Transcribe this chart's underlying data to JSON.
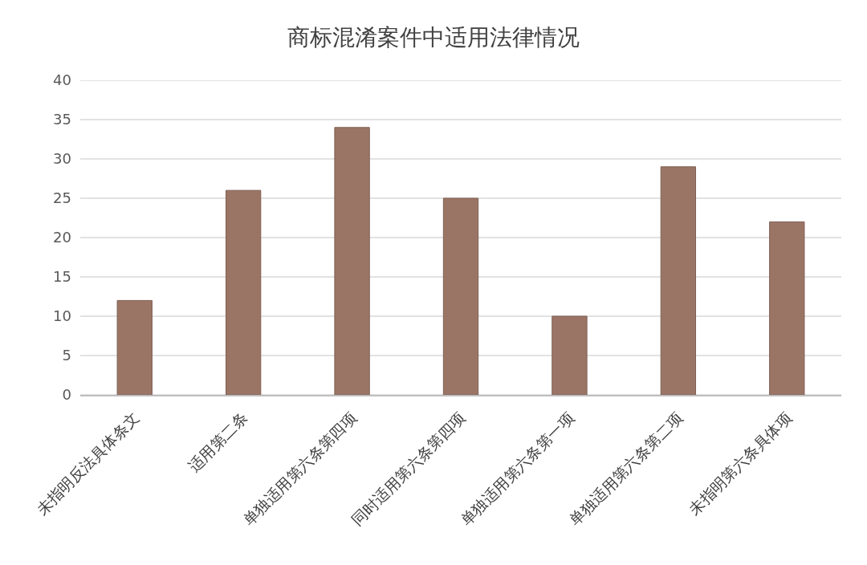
{
  "chart_data": {
    "type": "bar",
    "title": "商标混淆案件中适用法律情况",
    "categories": [
      "未指明反法具体条文",
      "适用第二条",
      "单独适用第六条第四项",
      "同时适用第六条第四项",
      "单独适用第六条第一项",
      "单独适用第六条第二项",
      "未指明第六条具体项"
    ],
    "values": [
      12,
      26,
      34,
      25,
      10,
      29,
      22
    ],
    "color": "#9a7566",
    "ylim": [
      0,
      40
    ],
    "yticks": [
      0,
      5,
      10,
      15,
      20,
      25,
      30,
      35,
      40
    ],
    "grid": "y"
  }
}
